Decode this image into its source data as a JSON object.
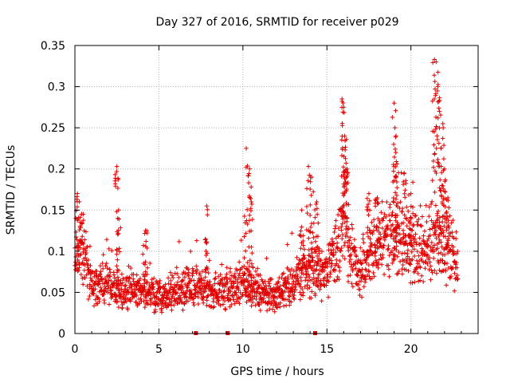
{
  "chart_data": {
    "type": "scatter",
    "title": "Day 327 of 2016, SRMTID for receiver p029",
    "xlabel": "GPS time / hours",
    "ylabel": "SRMTID / TECUs",
    "xlim": [
      0,
      24
    ],
    "ylim": [
      0,
      0.35
    ],
    "xticks": [
      0,
      5,
      10,
      15,
      20
    ],
    "xtick_labels": [
      "0",
      "5",
      "10",
      "15",
      "20"
    ],
    "yticks": [
      0,
      0.05,
      0.1,
      0.15,
      0.2,
      0.25,
      0.3,
      0.35
    ],
    "ytick_labels": [
      "0",
      "0.05",
      "0.1",
      "0.15",
      "0.2",
      "0.25",
      "0.3",
      "0.35"
    ],
    "grid": true,
    "marker": "+",
    "color": "#e00000",
    "zero_markers_x": [
      7.2,
      9.1,
      14.3
    ],
    "series": [
      {
        "name": "SRMTID",
        "profile": [
          [
            0.0,
            0.09
          ],
          [
            0.5,
            0.1
          ],
          [
            1.0,
            0.06
          ],
          [
            2.0,
            0.055
          ],
          [
            3.0,
            0.05
          ],
          [
            4.0,
            0.05
          ],
          [
            5.0,
            0.045
          ],
          [
            6.0,
            0.05
          ],
          [
            7.0,
            0.055
          ],
          [
            8.0,
            0.05
          ],
          [
            9.0,
            0.05
          ],
          [
            10.0,
            0.055
          ],
          [
            11.0,
            0.05
          ],
          [
            12.0,
            0.045
          ],
          [
            13.0,
            0.06
          ],
          [
            14.0,
            0.075
          ],
          [
            15.0,
            0.07
          ],
          [
            15.5,
            0.1
          ],
          [
            16.0,
            0.12
          ],
          [
            17.0,
            0.07
          ],
          [
            18.0,
            0.11
          ],
          [
            19.0,
            0.11
          ],
          [
            20.0,
            0.1
          ],
          [
            21.0,
            0.09
          ],
          [
            21.5,
            0.12
          ],
          [
            22.0,
            0.1
          ],
          [
            22.8,
            0.08
          ]
        ],
        "spikes": [
          [
            0.15,
            0.17
          ],
          [
            0.4,
            0.145
          ],
          [
            2.5,
            0.203
          ],
          [
            2.6,
            0.15
          ],
          [
            4.2,
            0.125
          ],
          [
            7.85,
            0.155
          ],
          [
            10.2,
            0.225
          ],
          [
            10.4,
            0.2
          ],
          [
            10.5,
            0.16
          ],
          [
            13.5,
            0.15
          ],
          [
            13.9,
            0.203
          ],
          [
            14.1,
            0.19
          ],
          [
            14.4,
            0.16
          ],
          [
            15.9,
            0.285
          ],
          [
            16.0,
            0.275
          ],
          [
            16.05,
            0.24
          ],
          [
            16.2,
            0.2
          ],
          [
            17.5,
            0.17
          ],
          [
            18.0,
            0.165
          ],
          [
            19.0,
            0.28
          ],
          [
            19.05,
            0.25
          ],
          [
            19.1,
            0.22
          ],
          [
            19.6,
            0.195
          ],
          [
            20.0,
            0.17
          ],
          [
            21.4,
            0.333
          ],
          [
            21.5,
            0.33
          ],
          [
            21.6,
            0.3
          ],
          [
            21.7,
            0.27
          ],
          [
            21.9,
            0.255
          ],
          [
            22.0,
            0.2
          ],
          [
            22.2,
            0.165
          ]
        ]
      }
    ]
  }
}
